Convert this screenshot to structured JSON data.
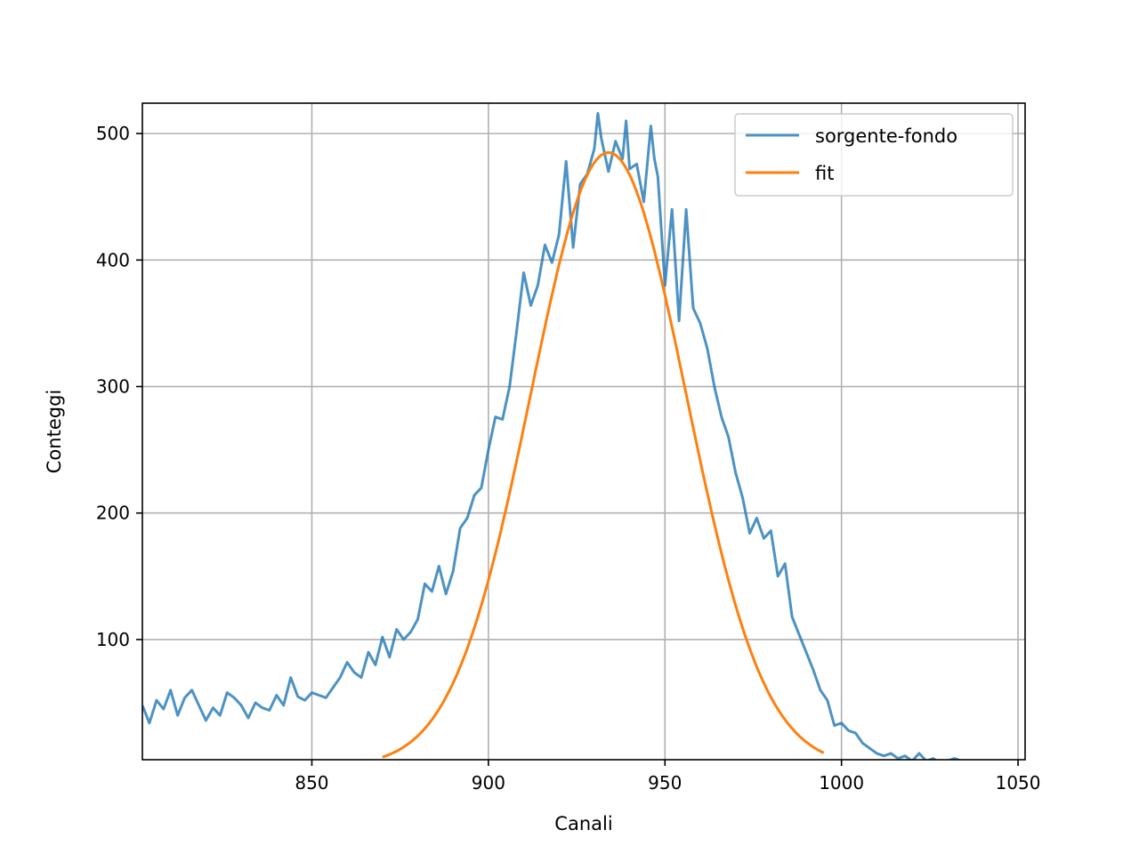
{
  "chart_data": {
    "type": "line",
    "xlabel": "Canali",
    "ylabel": "Conteggi",
    "xlim": [
      802,
      1052
    ],
    "ylim": [
      5,
      524
    ],
    "xticks": [
      850,
      900,
      950,
      1000,
      1050
    ],
    "yticks": [
      100,
      200,
      300,
      400,
      500
    ],
    "grid": true,
    "legend_position": "top-right",
    "series": [
      {
        "name": "sorgente-fondo",
        "color": "#1f77b4",
        "x": [
          802,
          804,
          806,
          808,
          810,
          812,
          814,
          816,
          818,
          820,
          822,
          824,
          826,
          828,
          830,
          832,
          834,
          836,
          838,
          840,
          842,
          844,
          846,
          848,
          850,
          852,
          854,
          856,
          858,
          860,
          862,
          864,
          866,
          868,
          870,
          872,
          874,
          876,
          878,
          880,
          882,
          884,
          886,
          888,
          890,
          892,
          894,
          896,
          898,
          900,
          902,
          904,
          906,
          908,
          910,
          912,
          914,
          916,
          918,
          920,
          922,
          924,
          926,
          928,
          930,
          931,
          932,
          934,
          936,
          938,
          939,
          940,
          942,
          944,
          946,
          947,
          948,
          950,
          952,
          954,
          956,
          958,
          960,
          962,
          964,
          966,
          968,
          970,
          972,
          974,
          976,
          978,
          980,
          982,
          984,
          986,
          988,
          990,
          992,
          994,
          996,
          998,
          1000,
          1002,
          1004,
          1006,
          1008,
          1010,
          1012,
          1014,
          1016,
          1018,
          1020,
          1022,
          1024,
          1026,
          1028,
          1030,
          1032,
          1034,
          1036,
          1038,
          1040,
          1042
        ],
        "values": [
          48,
          34,
          52,
          45,
          60,
          40,
          54,
          60,
          48,
          36,
          46,
          40,
          58,
          54,
          48,
          38,
          50,
          46,
          44,
          56,
          48,
          70,
          55,
          52,
          58,
          56,
          54,
          62,
          70,
          82,
          74,
          70,
          90,
          80,
          102,
          86,
          108,
          100,
          106,
          116,
          144,
          138,
          158,
          136,
          154,
          188,
          196,
          214,
          220,
          250,
          276,
          274,
          300,
          344,
          390,
          364,
          380,
          412,
          398,
          420,
          478,
          410,
          460,
          468,
          488,
          516,
          496,
          470,
          494,
          480,
          510,
          472,
          476,
          446,
          506,
          480,
          466,
          380,
          440,
          352,
          440,
          362,
          350,
          330,
          300,
          276,
          260,
          232,
          212,
          184,
          196,
          180,
          186,
          150,
          160,
          118,
          104,
          90,
          76,
          60,
          52,
          32,
          34,
          28,
          26,
          18,
          14,
          10,
          8,
          10,
          6,
          8,
          4,
          10,
          4,
          6,
          2,
          4,
          6,
          4,
          2,
          4,
          2,
          4
        ]
      },
      {
        "name": "fit",
        "color": "#ff7f0e",
        "gaussian": {
          "amplitude": 485,
          "mean": 934,
          "sigma": 22.0
        },
        "x_range": [
          870,
          995
        ]
      }
    ]
  }
}
